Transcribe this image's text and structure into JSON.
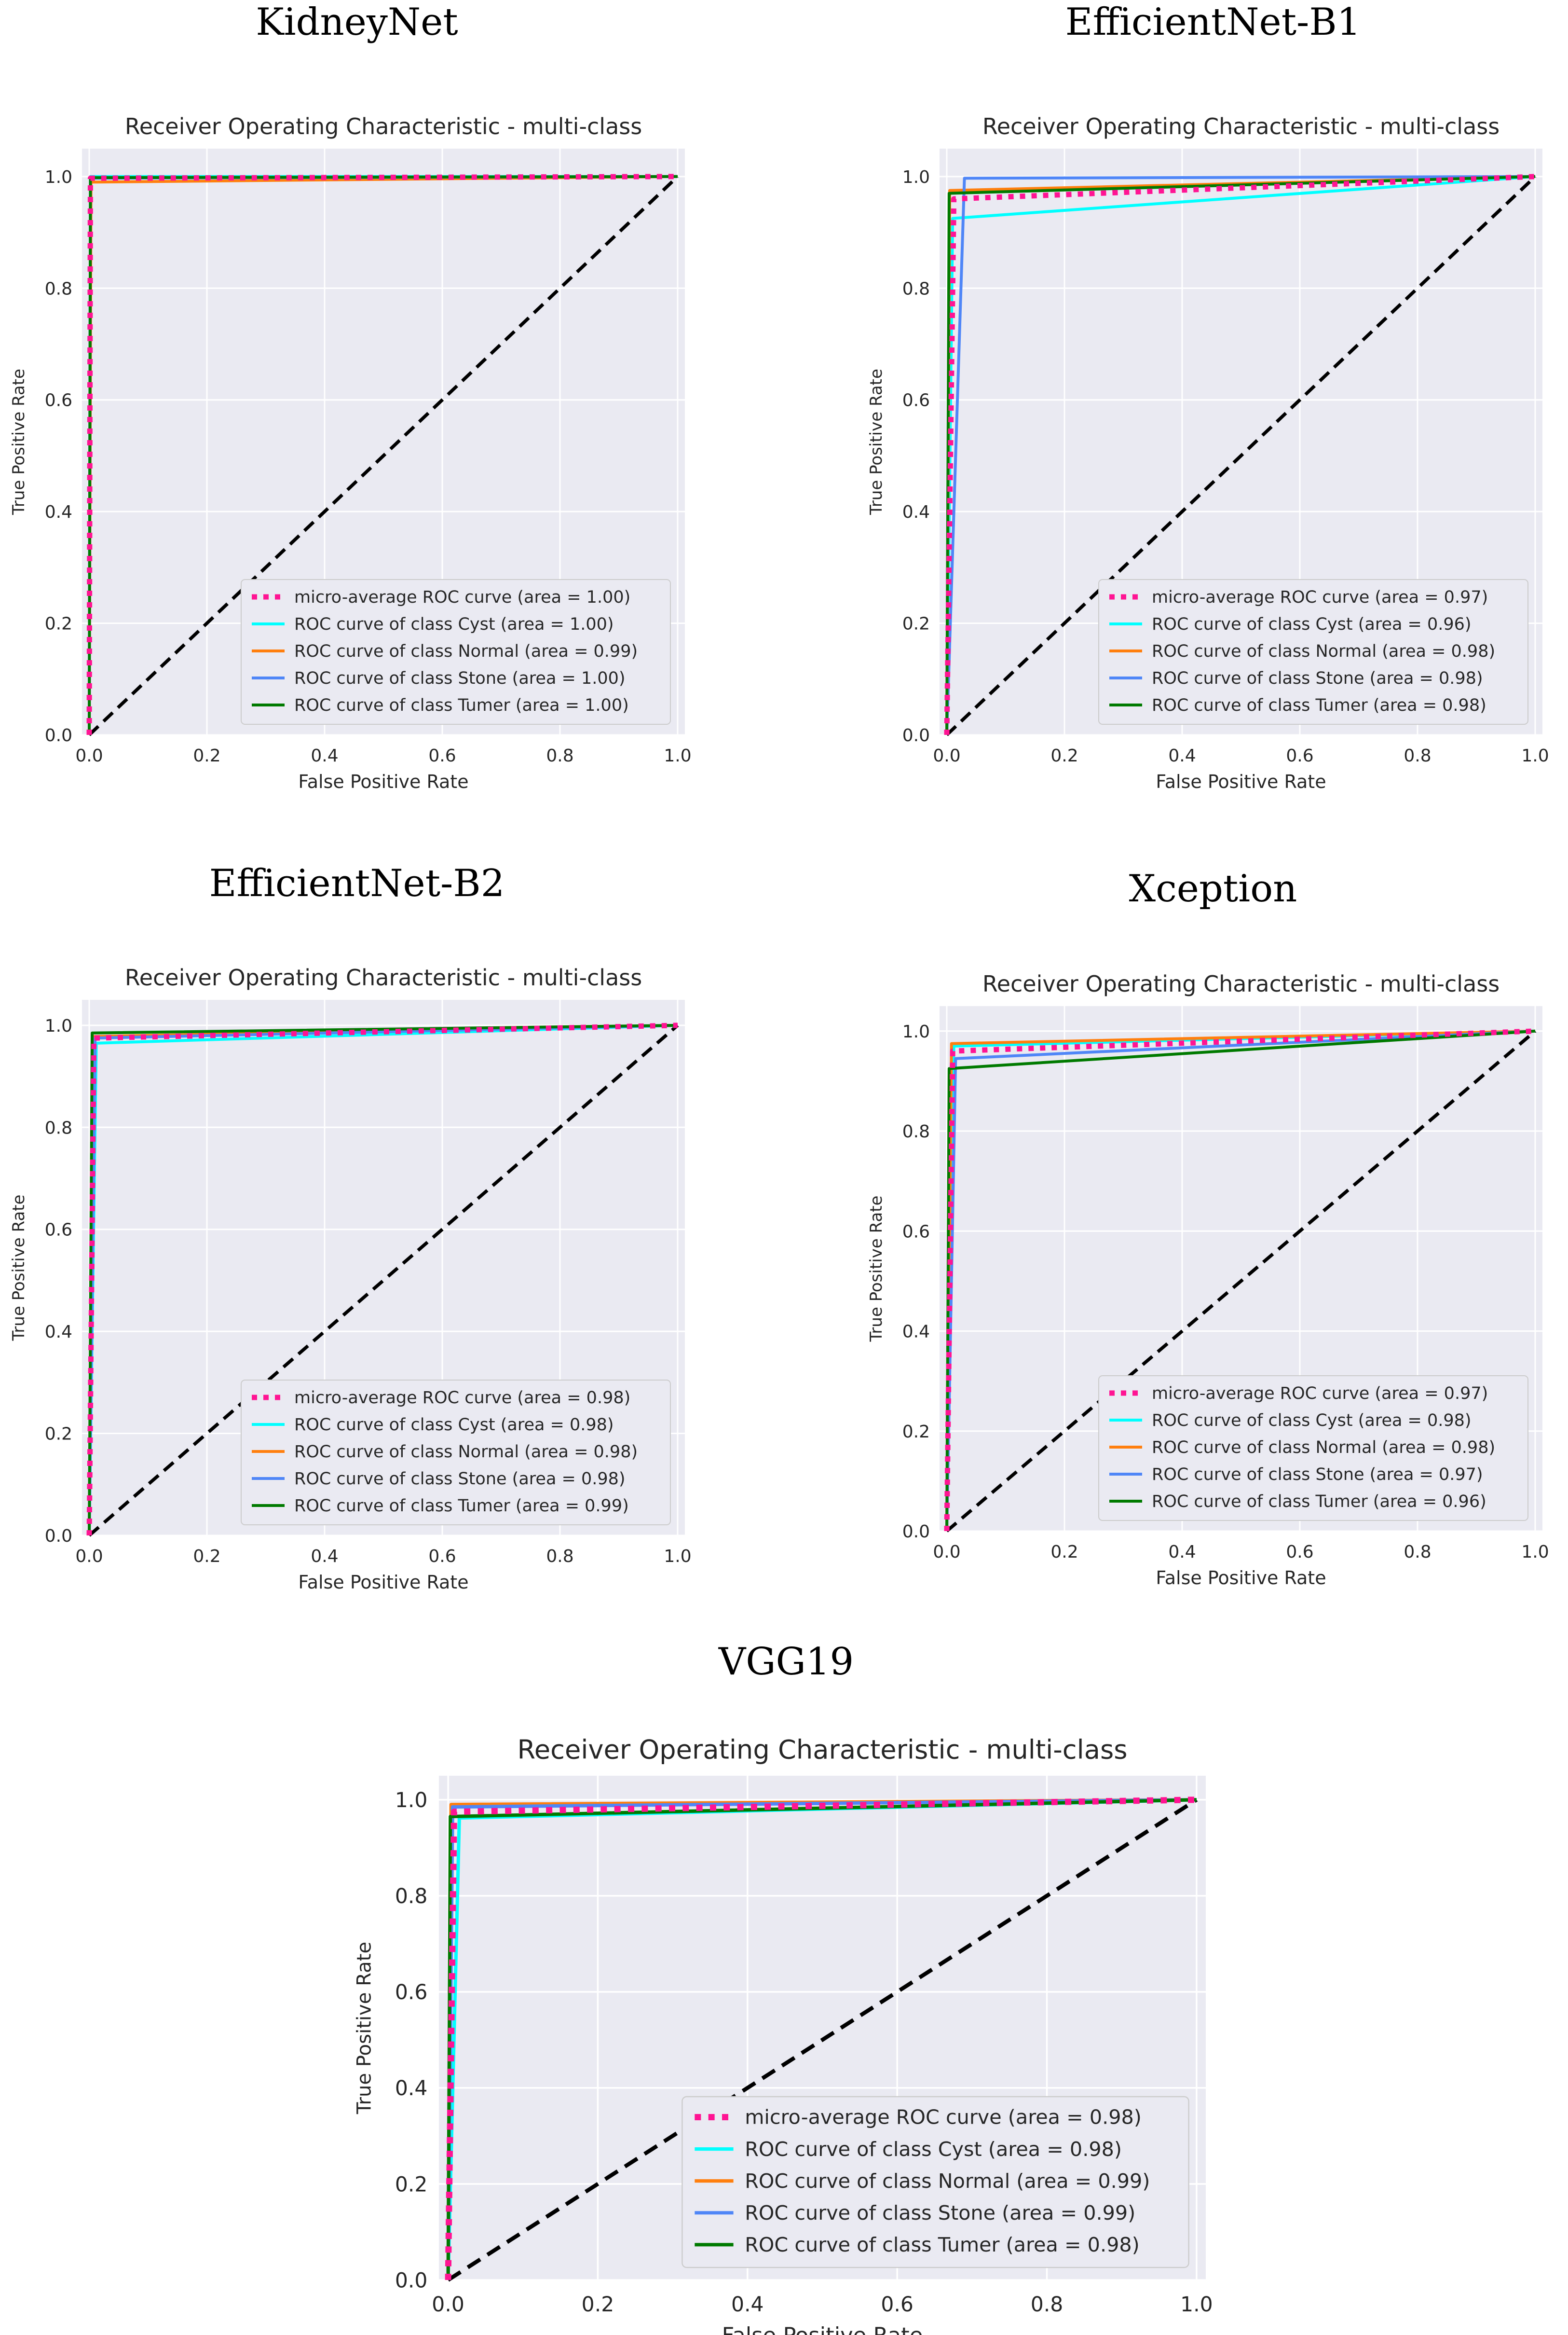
{
  "figure": {
    "panel_headings": [
      "KidneyNet",
      "EfficientNet-B1",
      "EfficientNet-B2",
      "Xception",
      "VGG19"
    ]
  },
  "colors": {
    "plot_bg": "#EAEAF2",
    "grid": "#FFFFFF",
    "micro": "#FF1493",
    "Cyst": "#00FFFF",
    "Normal": "#FF7F0E",
    "Stone": "#4F86F7",
    "Tumer": "#007A00",
    "diagonal": "#000000",
    "legend_bg": "#EAEAF2",
    "legend_border": "#CCCCCC"
  },
  "chart_data": [
    {
      "type": "line",
      "heading": "KidneyNet",
      "title": "Receiver Operating Characteristic - multi-class",
      "xlabel": "False Positive Rate",
      "ylabel": "True Positive Rate",
      "xlim": [
        0,
        1
      ],
      "ylim": [
        0,
        1
      ],
      "xticks": [
        "0.0",
        "0.2",
        "0.4",
        "0.6",
        "0.8",
        "1.0"
      ],
      "yticks": [
        "0.0",
        "0.2",
        "0.4",
        "0.6",
        "0.8",
        "1.0"
      ],
      "legend_position": "lower-right",
      "series": [
        {
          "name": "micro-average ROC curve (area = 1.00)",
          "key": "micro",
          "style": "dotted",
          "x": [
            0,
            0.002,
            1
          ],
          "y": [
            0,
            0.997,
            1
          ]
        },
        {
          "name": "ROC curve of class Cyst (area = 1.00)",
          "key": "Cyst",
          "style": "solid",
          "x": [
            0,
            0.002,
            1
          ],
          "y": [
            0,
            1.0,
            1
          ]
        },
        {
          "name": "ROC curve of class Normal (area = 0.99)",
          "key": "Normal",
          "style": "solid",
          "x": [
            0,
            0.003,
            1
          ],
          "y": [
            0,
            0.99,
            1
          ]
        },
        {
          "name": "ROC curve of class Stone (area = 1.00)",
          "key": "Stone",
          "style": "solid",
          "x": [
            0,
            0.002,
            1
          ],
          "y": [
            0,
            0.997,
            1
          ]
        },
        {
          "name": "ROC curve of class Tumer (area = 1.00)",
          "key": "Tumer",
          "style": "solid",
          "x": [
            0,
            0.002,
            1
          ],
          "y": [
            0,
            0.998,
            1
          ]
        }
      ]
    },
    {
      "type": "line",
      "heading": "EfficientNet-B1",
      "title": "Receiver Operating Characteristic - multi-class",
      "xlabel": "False Positive Rate",
      "ylabel": "True Positive Rate",
      "xlim": [
        0,
        1
      ],
      "ylim": [
        0,
        1
      ],
      "xticks": [
        "0.0",
        "0.2",
        "0.4",
        "0.6",
        "0.8",
        "1.0"
      ],
      "yticks": [
        "0.0",
        "0.2",
        "0.4",
        "0.6",
        "0.8",
        "1.0"
      ],
      "legend_position": "lower-right",
      "series": [
        {
          "name": "micro-average ROC curve (area = 0.97)",
          "key": "micro",
          "style": "dotted",
          "x": [
            0,
            0.012,
            1
          ],
          "y": [
            0,
            0.96,
            1
          ]
        },
        {
          "name": "ROC curve of class Cyst (area = 0.96)",
          "key": "Cyst",
          "style": "solid",
          "x": [
            0,
            0.01,
            1
          ],
          "y": [
            0,
            0.925,
            1
          ]
        },
        {
          "name": "ROC curve of class Normal (area = 0.98)",
          "key": "Normal",
          "style": "solid",
          "x": [
            0,
            0.005,
            1
          ],
          "y": [
            0,
            0.975,
            1
          ]
        },
        {
          "name": "ROC curve of class Stone (area = 0.98)",
          "key": "Stone",
          "style": "solid",
          "x": [
            0,
            0.03,
            1
          ],
          "y": [
            0,
            0.997,
            1
          ]
        },
        {
          "name": "ROC curve of class Tumer (area = 0.98)",
          "key": "Tumer",
          "style": "solid",
          "x": [
            0,
            0.004,
            1
          ],
          "y": [
            0,
            0.97,
            1
          ]
        }
      ]
    },
    {
      "type": "line",
      "heading": "EfficientNet-B2",
      "title": "Receiver Operating Characteristic - multi-class",
      "xlabel": "False Positive Rate",
      "ylabel": "True Positive Rate",
      "xlim": [
        0,
        1
      ],
      "ylim": [
        0,
        1
      ],
      "xticks": [
        "0.0",
        "0.2",
        "0.4",
        "0.6",
        "0.8",
        "1.0"
      ],
      "yticks": [
        "0.0",
        "0.2",
        "0.4",
        "0.6",
        "0.8",
        "1.0"
      ],
      "legend_position": "lower-right",
      "series": [
        {
          "name": "micro-average ROC curve (area = 0.98)",
          "key": "micro",
          "style": "dotted",
          "x": [
            0,
            0.008,
            1
          ],
          "y": [
            0,
            0.975,
            1
          ]
        },
        {
          "name": "ROC curve of class Cyst (area = 0.98)",
          "key": "Cyst",
          "style": "solid",
          "x": [
            0,
            0.012,
            1
          ],
          "y": [
            0,
            0.965,
            1
          ]
        },
        {
          "name": "ROC curve of class Normal (area = 0.98)",
          "key": "Normal",
          "style": "solid",
          "x": [
            0,
            0.006,
            1
          ],
          "y": [
            0,
            0.978,
            1
          ]
        },
        {
          "name": "ROC curve of class Stone (area = 0.98)",
          "key": "Stone",
          "style": "solid",
          "x": [
            0,
            0.01,
            1
          ],
          "y": [
            0,
            0.975,
            1
          ]
        },
        {
          "name": "ROC curve of class Tumer (area = 0.99)",
          "key": "Tumer",
          "style": "solid",
          "x": [
            0,
            0.005,
            1
          ],
          "y": [
            0,
            0.985,
            1
          ]
        }
      ]
    },
    {
      "type": "line",
      "heading": "Xception",
      "title": "Receiver Operating Characteristic - multi-class",
      "xlabel": "False Positive Rate",
      "ylabel": "True Positive Rate",
      "xlim": [
        0,
        1
      ],
      "ylim": [
        0,
        1
      ],
      "xticks": [
        "0.0",
        "0.2",
        "0.4",
        "0.6",
        "0.8",
        "1.0"
      ],
      "yticks": [
        "0.0",
        "0.2",
        "0.4",
        "0.6",
        "0.8",
        "1.0"
      ],
      "legend_position": "lower-right",
      "series": [
        {
          "name": "micro-average ROC curve (area = 0.97)",
          "key": "micro",
          "style": "dotted",
          "x": [
            0,
            0.01,
            1
          ],
          "y": [
            0,
            0.96,
            1
          ]
        },
        {
          "name": "ROC curve of class Cyst (area = 0.98)",
          "key": "Cyst",
          "style": "solid",
          "x": [
            0,
            0.012,
            1
          ],
          "y": [
            0,
            0.97,
            1
          ]
        },
        {
          "name": "ROC curve of class Normal (area = 0.98)",
          "key": "Normal",
          "style": "solid",
          "x": [
            0,
            0.008,
            1
          ],
          "y": [
            0,
            0.975,
            1
          ]
        },
        {
          "name": "ROC curve of class Stone (area = 0.97)",
          "key": "Stone",
          "style": "solid",
          "x": [
            0,
            0.015,
            1
          ],
          "y": [
            0,
            0.945,
            1
          ]
        },
        {
          "name": "ROC curve of class Tumer (area = 0.96)",
          "key": "Tumer",
          "style": "solid",
          "x": [
            0,
            0.004,
            1
          ],
          "y": [
            0,
            0.925,
            1
          ]
        }
      ]
    },
    {
      "type": "line",
      "heading": "VGG19",
      "title": "Receiver Operating Characteristic - multi-class",
      "xlabel": "False Positive Rate",
      "ylabel": "True Positive Rate",
      "xlim": [
        0,
        1
      ],
      "ylim": [
        0,
        1
      ],
      "xticks": [
        "0.0",
        "0.2",
        "0.4",
        "0.6",
        "0.8",
        "1.0"
      ],
      "yticks": [
        "0.0",
        "0.2",
        "0.4",
        "0.6",
        "0.8",
        "1.0"
      ],
      "legend_position": "lower-right",
      "series": [
        {
          "name": "micro-average ROC curve (area = 0.98)",
          "key": "micro",
          "style": "dotted",
          "x": [
            0,
            0.008,
            1
          ],
          "y": [
            0,
            0.975,
            1
          ]
        },
        {
          "name": "ROC curve of class Cyst (area = 0.98)",
          "key": "Cyst",
          "style": "solid",
          "x": [
            0,
            0.015,
            1
          ],
          "y": [
            0,
            0.962,
            1
          ]
        },
        {
          "name": "ROC curve of class Normal (area = 0.99)",
          "key": "Normal",
          "style": "solid",
          "x": [
            0,
            0.004,
            1
          ],
          "y": [
            0,
            0.99,
            1
          ]
        },
        {
          "name": "ROC curve of class Stone (area = 0.99)",
          "key": "Stone",
          "style": "solid",
          "x": [
            0,
            0.006,
            1
          ],
          "y": [
            0,
            0.985,
            1
          ]
        },
        {
          "name": "ROC curve of class Tumer (area = 0.98)",
          "key": "Tumer",
          "style": "solid",
          "x": [
            0,
            0.003,
            1
          ],
          "y": [
            0,
            0.965,
            1
          ]
        }
      ]
    }
  ]
}
